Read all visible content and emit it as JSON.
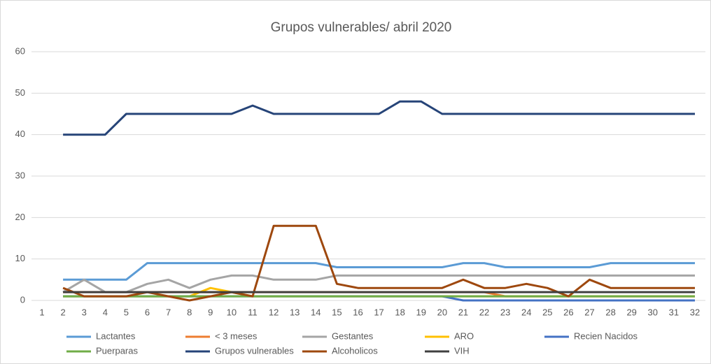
{
  "chart_data": {
    "type": "line",
    "title": "Grupos vulnerables/ abril 2020",
    "categories": [
      "1",
      "2",
      "3",
      "4",
      "5",
      "6",
      "7",
      "8",
      "9",
      "10",
      "11",
      "12",
      "13",
      "14",
      "15",
      "16",
      "17",
      "18",
      "19",
      "20",
      "21",
      "22",
      "23",
      "24",
      "25",
      "26",
      "27",
      "28",
      "29",
      "30",
      "31",
      "32"
    ],
    "ylim": [
      0,
      60
    ],
    "yticks": [
      0,
      10,
      20,
      30,
      40,
      50,
      60
    ],
    "grid": true,
    "legend": "bottom",
    "series": [
      {
        "name": "Lactantes",
        "color": "#5b9bd5",
        "values": [
          null,
          5,
          5,
          5,
          5,
          9,
          9,
          9,
          9,
          9,
          9,
          9,
          9,
          9,
          8,
          8,
          8,
          8,
          8,
          8,
          9,
          9,
          8,
          8,
          8,
          8,
          8,
          9,
          9,
          9,
          9,
          9
        ]
      },
      {
        "name": "< 3 meses",
        "color": "#ed7d31",
        "values": [
          null,
          2,
          2,
          2,
          2,
          2,
          2,
          2,
          2,
          2,
          2,
          2,
          2,
          2,
          2,
          2,
          2,
          2,
          2,
          2,
          2,
          2,
          1,
          1,
          1,
          1,
          1,
          1,
          1,
          1,
          1,
          1
        ]
      },
      {
        "name": "Gestantes",
        "color": "#a5a5a5",
        "values": [
          null,
          2,
          5,
          2,
          2,
          4,
          5,
          3,
          5,
          6,
          6,
          5,
          5,
          5,
          6,
          6,
          6,
          6,
          6,
          6,
          6,
          6,
          6,
          6,
          6,
          6,
          6,
          6,
          6,
          6,
          6,
          6
        ]
      },
      {
        "name": "ARO",
        "color": "#ffc000",
        "values": [
          null,
          1,
          1,
          1,
          1,
          1,
          1,
          1,
          3,
          2,
          1,
          1,
          1,
          1,
          1,
          1,
          1,
          1,
          1,
          1,
          1,
          1,
          1,
          1,
          1,
          1,
          1,
          1,
          1,
          1,
          1,
          1
        ]
      },
      {
        "name": "Recien Nacidos",
        "color": "#4472c4",
        "values": [
          null,
          1,
          1,
          1,
          1,
          1,
          1,
          1,
          1,
          1,
          1,
          1,
          1,
          1,
          1,
          1,
          1,
          1,
          1,
          1,
          0,
          0,
          0,
          0,
          0,
          0,
          0,
          0,
          0,
          0,
          0,
          0
        ]
      },
      {
        "name": "Puerparas",
        "color": "#70ad47",
        "values": [
          null,
          1,
          1,
          1,
          1,
          1,
          1,
          1,
          1,
          1,
          1,
          1,
          1,
          1,
          1,
          1,
          1,
          1,
          1,
          1,
          1,
          1,
          1,
          1,
          1,
          1,
          1,
          1,
          1,
          1,
          1,
          1
        ]
      },
      {
        "name": "Grupos vulnerables",
        "color": "#264478",
        "values": [
          null,
          40,
          40,
          40,
          45,
          45,
          45,
          45,
          45,
          45,
          47,
          45,
          45,
          45,
          45,
          45,
          45,
          48,
          48,
          45,
          45,
          45,
          45,
          45,
          45,
          45,
          45,
          45,
          45,
          45,
          45,
          45
        ]
      },
      {
        "name": "Alcoholicos",
        "color": "#9e480e",
        "values": [
          null,
          3,
          1,
          1,
          1,
          2,
          1,
          0,
          1,
          2,
          1,
          18,
          18,
          18,
          4,
          3,
          3,
          3,
          3,
          3,
          5,
          3,
          3,
          4,
          3,
          1,
          5,
          3,
          3,
          3,
          3,
          3
        ]
      },
      {
        "name": "VIH",
        "color": "#404040",
        "values": [
          null,
          2,
          2,
          2,
          2,
          2,
          2,
          2,
          2,
          2,
          2,
          2,
          2,
          2,
          2,
          2,
          2,
          2,
          2,
          2,
          2,
          2,
          2,
          2,
          2,
          2,
          2,
          2,
          2,
          2,
          2,
          2
        ]
      }
    ]
  }
}
